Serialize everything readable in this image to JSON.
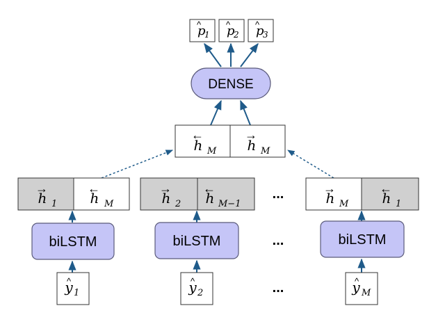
{
  "colors": {
    "node_fill": "#c5c5f7",
    "node_stroke": "#5a5a7a",
    "arrow": "#1f5b8a",
    "shaded_cell": "#d0d0d0",
    "box_stroke": "#333333"
  },
  "outputs": [
    {
      "base": "p",
      "sub": "1"
    },
    {
      "base": "p",
      "sub": "2"
    },
    {
      "base": "p",
      "sub": "3"
    }
  ],
  "dense_label": "DENSE",
  "concat": [
    {
      "arrow": "left",
      "base": "h",
      "sub": "M"
    },
    {
      "arrow": "right",
      "base": "h",
      "sub": "M"
    }
  ],
  "columns": [
    {
      "states": [
        {
          "arrow": "right",
          "base": "h",
          "sub": "1",
          "shaded": true
        },
        {
          "arrow": "left",
          "base": "h",
          "sub": "M",
          "shaded": false
        }
      ],
      "lstm_label": "biLSTM",
      "input": {
        "base": "y",
        "sub": "1"
      }
    },
    {
      "states": [
        {
          "arrow": "right",
          "base": "h",
          "sub": "2",
          "shaded": true
        },
        {
          "arrow": "left",
          "base": "h",
          "sub": "M−1",
          "shaded": true
        }
      ],
      "lstm_label": "biLSTM",
      "input": {
        "base": "y",
        "sub": "2"
      }
    },
    {
      "states": [
        {
          "arrow": "right",
          "base": "h",
          "sub": "M",
          "shaded": false
        },
        {
          "arrow": "left",
          "base": "h",
          "sub": "1",
          "shaded": true
        }
      ],
      "lstm_label": "biLSTM",
      "input": {
        "base": "y",
        "sub": "M"
      }
    }
  ],
  "ellipsis": [
    "...",
    "...",
    "..."
  ]
}
